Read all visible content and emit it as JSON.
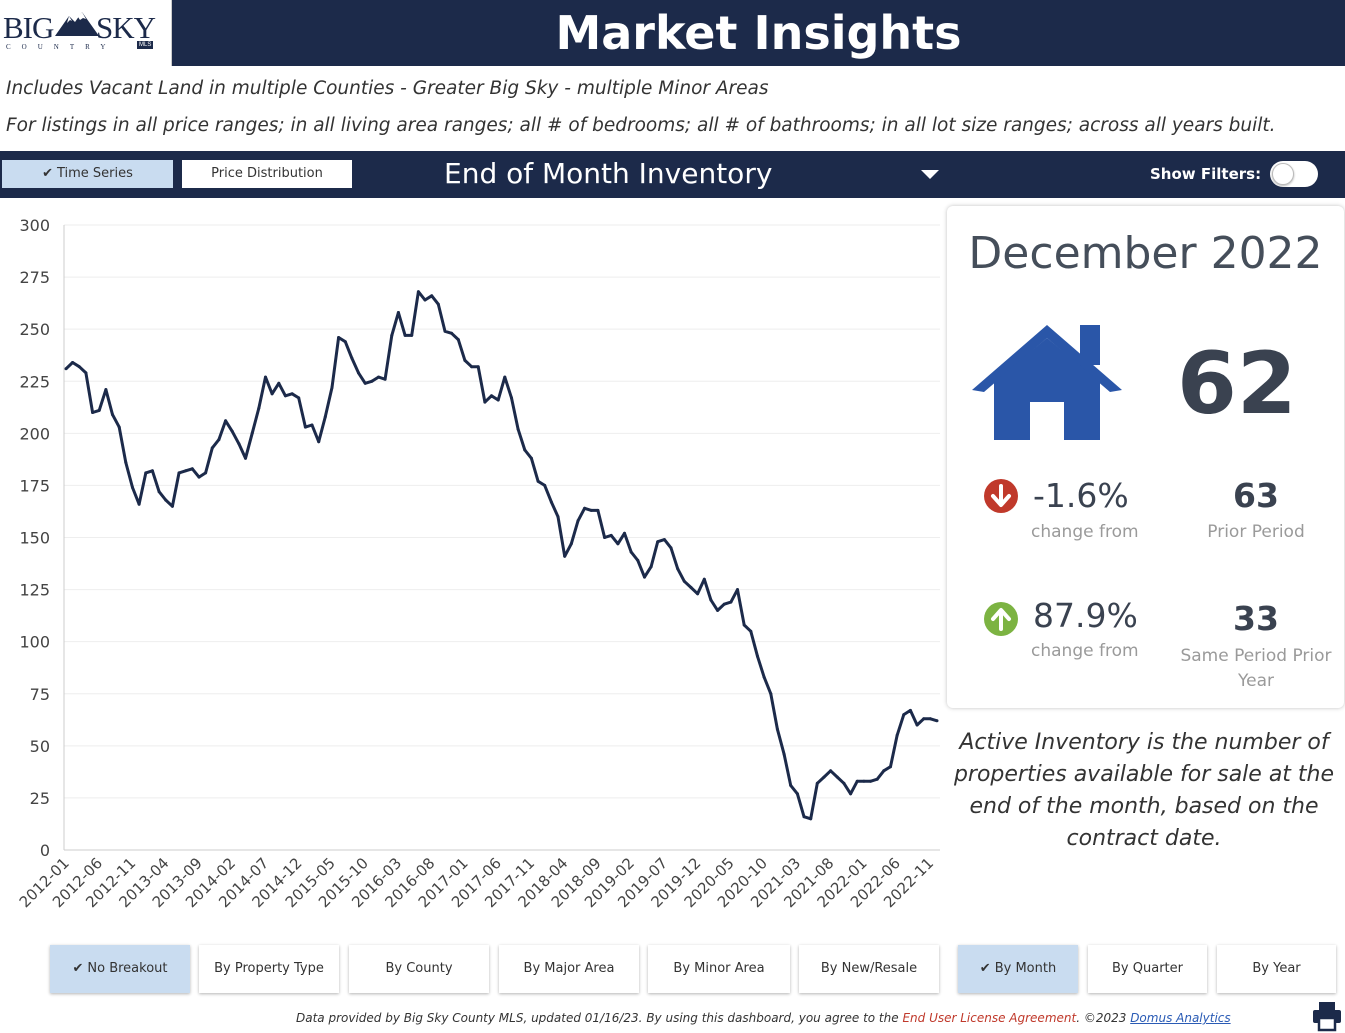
{
  "header": {
    "title": "Market Insights",
    "logo": {
      "big": "BIG",
      "sky": "SKY",
      "country": "COUNTRY",
      "mls": "MLS"
    }
  },
  "subtitle": {
    "line1": "Includes Vacant Land in multiple Counties - Greater Big Sky - multiple Minor Areas",
    "line2": "For listings in all price ranges; in all living area ranges; all # of bedrooms; all # of bathrooms; in all lot size ranges; across all years built."
  },
  "toolbar": {
    "time_series": "Time Series",
    "price_distribution": "Price Distribution",
    "metric": "End of Month Inventory",
    "show_filters": "Show Filters:"
  },
  "card": {
    "month": "December 2022",
    "value": "62",
    "change1_pct": "-1.6%",
    "change1_caption": "change from",
    "prior_value": "63",
    "prior_caption": "Prior Period",
    "change2_pct": "87.9%",
    "change2_caption": "change from",
    "same_value": "33",
    "same_caption": "Same Period Prior Year"
  },
  "note": "Active Inventory is the number of properties available for sale at the end of the month, based on the contract date.",
  "breakout_buttons": [
    "No Breakout",
    "By Property Type",
    "By County",
    "By Major Area",
    "By Minor Area",
    "By New/Resale"
  ],
  "period_buttons": [
    "By Month",
    "By Quarter",
    "By Year"
  ],
  "footer": {
    "text1": "Data provided by Big Sky County MLS, updated 01/16/23.  By using this dashboard, you agree to the ",
    "eula": "End User License Agreement",
    "text2": ".  ©2023 ",
    "domus": "Domus Analytics"
  },
  "colors": {
    "navy": "#1c2a4a",
    "selected": "#c9dcf0",
    "down": "#c0392b",
    "up": "#7cb342",
    "house": "#2a56a8"
  },
  "chart_data": {
    "type": "line",
    "ylim": [
      0,
      300
    ],
    "yticks": [
      0,
      25,
      50,
      75,
      100,
      125,
      150,
      175,
      200,
      225,
      250,
      275,
      300
    ],
    "xtick_labels": [
      "2012-01",
      "2012-06",
      "2012-11",
      "2013-04",
      "2013-09",
      "2014-02",
      "2014-07",
      "2014-12",
      "2015-05",
      "2015-10",
      "2016-03",
      "2016-08",
      "2017-01",
      "2017-06",
      "2017-11",
      "2018-04",
      "2018-09",
      "2019-02",
      "2019-07",
      "2019-12",
      "2020-05",
      "2020-10",
      "2021-03",
      "2021-08",
      "2022-01",
      "2022-06",
      "2022-11"
    ],
    "series": [
      {
        "values": [
          231,
          234,
          232,
          229,
          210,
          211,
          221,
          209,
          203,
          186,
          174,
          166,
          181,
          182,
          172,
          168,
          165,
          181,
          182,
          183,
          179,
          181,
          193,
          197,
          206,
          201,
          195,
          188,
          200,
          212,
          227,
          219,
          224,
          218,
          219,
          217,
          203,
          204,
          196,
          208,
          222,
          246,
          244,
          236,
          229,
          224,
          225,
          227,
          226,
          247,
          258,
          247,
          247,
          268,
          264,
          266,
          262,
          249,
          248,
          245,
          235,
          232,
          232,
          215,
          218,
          216,
          227,
          217,
          202,
          192,
          188,
          177,
          175,
          167,
          160,
          141,
          147,
          158,
          164,
          163,
          163,
          150,
          151,
          147,
          152,
          143,
          139,
          131,
          136,
          148,
          149,
          145,
          135,
          129,
          126,
          123,
          130,
          120,
          115,
          118,
          119,
          125,
          108,
          105,
          93,
          83,
          75,
          58,
          46,
          31,
          27,
          16,
          15,
          32,
          35,
          38,
          35,
          32,
          27,
          33,
          33,
          33,
          34,
          38,
          40,
          55,
          65,
          67,
          60,
          63,
          63,
          62
        ]
      }
    ]
  }
}
